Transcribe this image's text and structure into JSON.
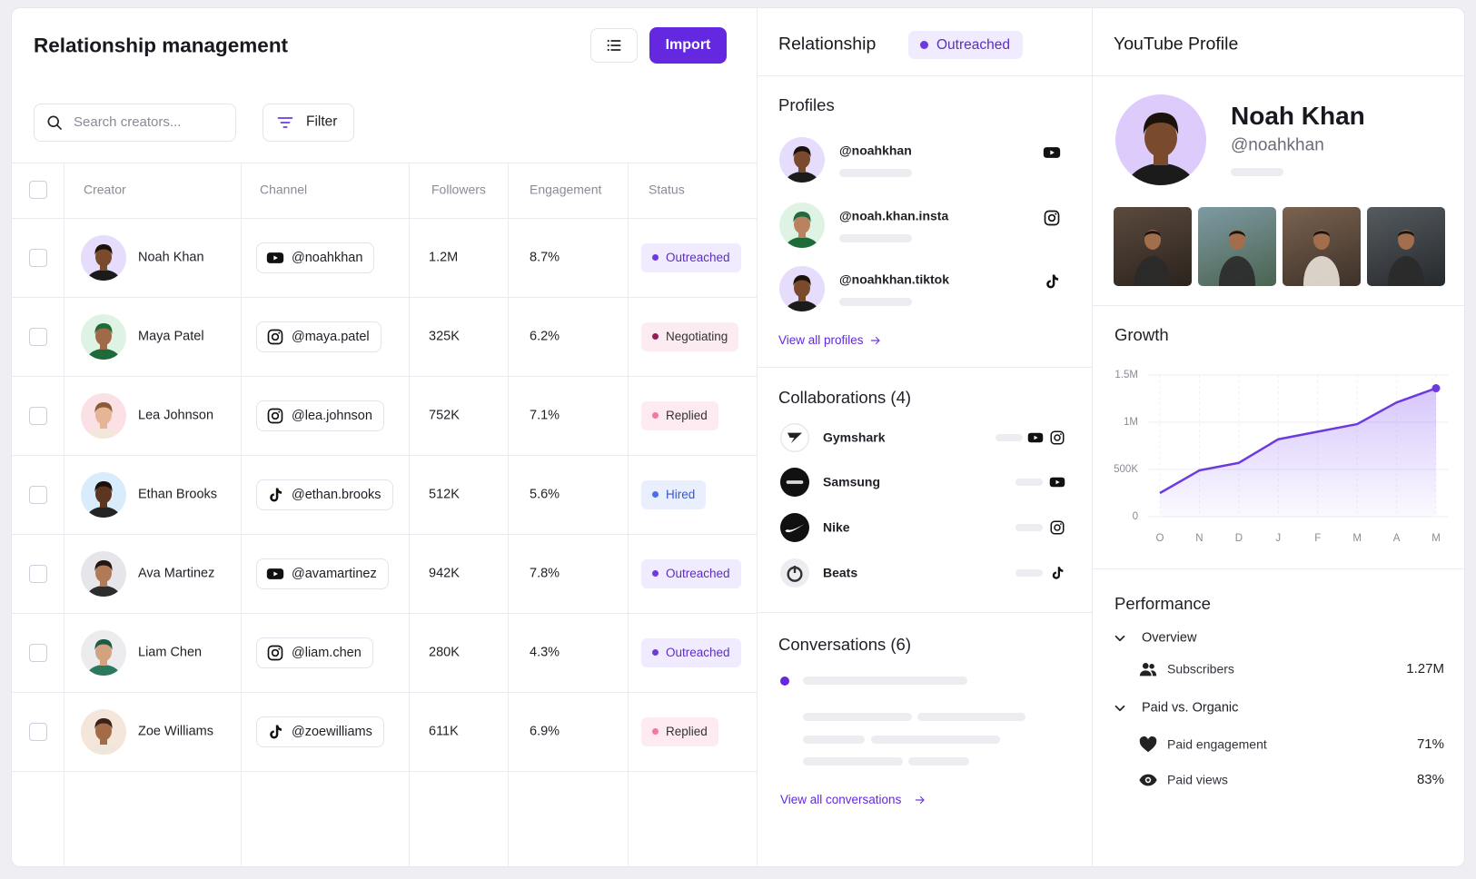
{
  "header": {
    "title": "Relationship management",
    "import_button": "Import",
    "search_placeholder": "Search creators...",
    "filter_button": "Filter"
  },
  "table": {
    "columns": [
      "Creator",
      "Channel",
      "Followers",
      "Engagement",
      "Status"
    ],
    "rows": [
      [
        "Noah Khan",
        "@noahkhan",
        "1.2M",
        "8.7%",
        "Outreached"
      ],
      [
        "Maya Patel",
        "@maya.patel",
        "325K",
        "6.2%",
        "Negotiating"
      ],
      [
        "Lea Johnson",
        "@lea.johnson",
        "752K",
        "7.1%",
        "Replied"
      ],
      [
        "Ethan Brooks",
        "@ethan.brooks",
        "512K",
        "5.6%",
        "Hired"
      ],
      [
        "Ava Martinez",
        "@avamartinez",
        "942K",
        "7.8%",
        "Outreached"
      ],
      [
        "Liam Chen",
        "@liam.chen",
        "280K",
        "4.3%",
        "Outreached"
      ],
      [
        "Zoe Williams",
        "@zoewilliams",
        "611K",
        "6.9%",
        "Replied"
      ]
    ]
  },
  "relationship": {
    "title": "Relationship",
    "status": "Outreached",
    "profiles_title": "Profiles",
    "profiles": [
      "@noahkhan",
      "@noah.khan.insta",
      "@noahkhan.tiktok"
    ],
    "view_profiles": "View all profiles",
    "collaborations_title": "Collaborations (4)",
    "collaborations": [
      "Gymshark",
      "Samsung",
      "Nike",
      "Beats"
    ],
    "conversations_title": "Conversations (6)",
    "view_conversations": "View all conversations"
  },
  "youtube": {
    "title": "YouTube Profile",
    "name": "Noah Khan",
    "handle": "@noahkhan"
  },
  "chart_data": {
    "type": "line",
    "title": "Growth",
    "categories": [
      "O",
      "N",
      "D",
      "J",
      "F",
      "M",
      "A",
      "M"
    ],
    "values": [
      250000,
      490000,
      570000,
      820000,
      900000,
      980000,
      1210000,
      1360000
    ],
    "color": "#6d3ae0",
    "ylim": [
      0,
      1500000
    ],
    "yticks": [
      0,
      {
        "value": 500000,
        "label": "500K"
      },
      {
        "value": 1000000,
        "label": "1M"
      },
      {
        "value": 1500000,
        "label": "1.5M"
      }
    ],
    "grid": true
  },
  "performance": {
    "title": "Performance",
    "groups": [
      {
        "name": "Overview",
        "items": [
          {
            "label": "Subscribers",
            "value": "1.27M"
          }
        ]
      },
      {
        "name": "Paid vs. Organic",
        "items": [
          {
            "label": "Paid engagement",
            "value": "71%"
          },
          {
            "label": "Paid views",
            "value": "83%"
          }
        ]
      }
    ]
  }
}
